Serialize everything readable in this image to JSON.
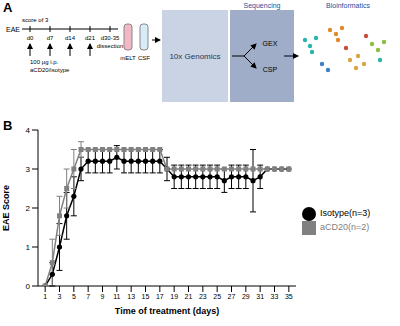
{
  "diagram": {
    "panel_label": "A",
    "eae": "EAE",
    "score": "score of 3",
    "days": [
      "d0",
      "d7",
      "d14",
      "d21",
      "d30-35"
    ],
    "dose": "100 μg i.p.",
    "treatment": "aCD20/isotype",
    "dissection": "dissection",
    "samples": [
      "mELT",
      "CSF"
    ],
    "platform": "10x Genomics",
    "sequencing": "Sequencing",
    "outputs": [
      "GEX",
      "CSP"
    ],
    "analysis": "Bioinformatics"
  },
  "chart_data": {
    "type": "line",
    "panel_label": "B",
    "x_label": "Time of treatment (days)",
    "y_label": "EAE Score",
    "x": [
      1,
      2,
      3,
      4,
      5,
      6,
      7,
      8,
      9,
      10,
      11,
      12,
      13,
      14,
      15,
      16,
      17,
      18,
      19,
      20,
      21,
      22,
      23,
      24,
      25,
      26,
      27,
      28,
      29,
      30,
      31,
      32,
      33,
      34,
      35
    ],
    "series": [
      {
        "name": "Isotype(n=3)",
        "color": "#000000",
        "marker": "circle",
        "values": [
          0,
          0.3,
          1.0,
          1.8,
          2.3,
          3.0,
          3.2,
          3.2,
          3.2,
          3.2,
          3.3,
          3.2,
          3.2,
          3.2,
          3.2,
          3.2,
          3.2,
          3.0,
          2.8,
          2.8,
          2.8,
          2.8,
          2.8,
          2.8,
          2.8,
          2.7,
          2.8,
          2.8,
          2.8,
          2.7,
          2.8,
          3.0,
          3.0,
          3.0,
          3.0
        ],
        "errors": [
          0,
          0.3,
          0.6,
          0.6,
          0.5,
          0.3,
          0.3,
          0.3,
          0.3,
          0.3,
          0.3,
          0.3,
          0.3,
          0.3,
          0.3,
          0.3,
          0.3,
          0.3,
          0.3,
          0.3,
          0.3,
          0.3,
          0.3,
          0.3,
          0.3,
          0.3,
          0.3,
          0.3,
          0.3,
          0.8,
          0.3,
          0,
          0,
          0,
          0
        ]
      },
      {
        "name": "aCD20(n=2)",
        "color": "#808080",
        "marker": "square",
        "values": [
          0,
          0.6,
          1.8,
          2.5,
          3.0,
          3.5,
          3.5,
          3.5,
          3.5,
          3.5,
          3.5,
          3.5,
          3.5,
          3.5,
          3.5,
          3.5,
          3.5,
          3.0,
          3.0,
          3.0,
          3.0,
          3.0,
          3.0,
          3.0,
          3.0,
          3.0,
          3.0,
          3.0,
          3.0,
          3.0,
          3.0,
          3.0,
          3.0,
          3.0,
          3.0
        ],
        "errors": [
          0,
          0.6,
          0.5,
          0.5,
          0.5,
          0.2,
          0,
          0,
          0,
          0,
          0,
          0,
          0,
          0,
          0,
          0,
          0,
          0,
          0,
          0,
          0,
          0,
          0,
          0,
          0,
          0,
          0,
          0,
          0,
          0,
          0,
          0,
          0,
          0,
          0
        ]
      }
    ],
    "xlim": [
      0,
      36
    ],
    "xticks": [
      1,
      3,
      5,
      7,
      9,
      11,
      13,
      15,
      17,
      19,
      21,
      23,
      25,
      27,
      29,
      31,
      33,
      35
    ],
    "ylim": [
      0,
      4
    ],
    "yticks": [
      0,
      1,
      2,
      3,
      4
    ],
    "grid": false
  }
}
